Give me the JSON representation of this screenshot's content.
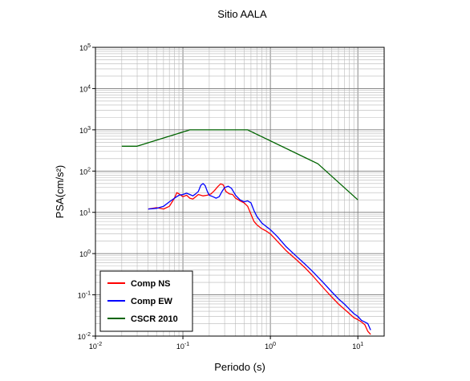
{
  "chart_data": {
    "type": "line",
    "title": "Sitio AALA",
    "xlabel": "Periodo (s)",
    "ylabel": "PSA(cm/s²)",
    "x_scale": "log",
    "y_scale": "log",
    "xlim": [
      0.01,
      20
    ],
    "ylim": [
      0.01,
      100000
    ],
    "grid": true,
    "legend_position": "bottom-left",
    "x_ticks": [
      {
        "value": 0.01,
        "base": "10",
        "exp": "-2"
      },
      {
        "value": 0.1,
        "base": "10",
        "exp": "-1"
      },
      {
        "value": 1,
        "base": "10",
        "exp": "0"
      },
      {
        "value": 10,
        "base": "10",
        "exp": "1"
      }
    ],
    "y_ticks": [
      {
        "value": 0.01,
        "base": "10",
        "exp": "-2"
      },
      {
        "value": 0.1,
        "base": "10",
        "exp": "-1"
      },
      {
        "value": 1,
        "base": "10",
        "exp": "0"
      },
      {
        "value": 10,
        "base": "10",
        "exp": "1"
      },
      {
        "value": 100,
        "base": "10",
        "exp": "2"
      },
      {
        "value": 1000,
        "base": "10",
        "exp": "3"
      },
      {
        "value": 10000,
        "base": "10",
        "exp": "4"
      },
      {
        "value": 100000,
        "base": "10",
        "exp": "5"
      }
    ],
    "series": [
      {
        "name": "Comp NS",
        "color": "#ff0000",
        "x": [
          0.04,
          0.05,
          0.06,
          0.07,
          0.08,
          0.085,
          0.09,
          0.1,
          0.11,
          0.12,
          0.13,
          0.14,
          0.15,
          0.17,
          0.19,
          0.21,
          0.23,
          0.25,
          0.27,
          0.29,
          0.31,
          0.34,
          0.37,
          0.4,
          0.45,
          0.5,
          0.55,
          0.6,
          0.65,
          0.7,
          0.8,
          0.9,
          1.0,
          1.2,
          1.5,
          2.0,
          2.5,
          3.0,
          4.0,
          5.0,
          6.0,
          7.0,
          8.0,
          9.0,
          10.0,
          11.0,
          12.0,
          13.0,
          14.0
        ],
        "y": [
          12,
          13,
          12,
          14,
          22,
          30,
          28,
          24,
          26,
          22,
          21,
          24,
          27,
          25,
          26,
          28,
          34,
          42,
          49,
          46,
          32,
          28,
          27,
          22,
          19,
          17,
          14,
          9,
          6,
          5,
          4,
          3.5,
          3.0,
          2.0,
          1.2,
          0.7,
          0.45,
          0.3,
          0.15,
          0.09,
          0.06,
          0.045,
          0.035,
          0.028,
          0.025,
          0.022,
          0.019,
          0.013,
          0.011
        ]
      },
      {
        "name": "Comp EW",
        "color": "#0000ff",
        "x": [
          0.04,
          0.05,
          0.06,
          0.07,
          0.08,
          0.09,
          0.1,
          0.11,
          0.12,
          0.13,
          0.14,
          0.15,
          0.16,
          0.17,
          0.18,
          0.19,
          0.2,
          0.22,
          0.24,
          0.26,
          0.28,
          0.3,
          0.33,
          0.36,
          0.4,
          0.45,
          0.5,
          0.55,
          0.6,
          0.65,
          0.7,
          0.8,
          0.9,
          1.0,
          1.2,
          1.5,
          2.0,
          2.5,
          3.0,
          4.0,
          5.0,
          6.0,
          7.0,
          8.0,
          9.0,
          10.0,
          11.0,
          12.0,
          13.0,
          14.0
        ],
        "y": [
          12,
          12.5,
          14,
          18,
          22,
          26,
          27,
          29,
          27,
          25,
          28,
          32,
          45,
          50,
          44,
          32,
          26,
          24,
          22,
          24,
          32,
          40,
          43,
          38,
          26,
          20,
          18,
          19,
          17,
          11,
          8,
          5.5,
          4.5,
          3.8,
          2.6,
          1.5,
          0.85,
          0.55,
          0.38,
          0.2,
          0.12,
          0.08,
          0.06,
          0.045,
          0.035,
          0.03,
          0.024,
          0.022,
          0.02,
          0.014
        ]
      },
      {
        "name": "CSCR 2010",
        "color": "#006400",
        "x": [
          0.02,
          0.03,
          0.12,
          0.55,
          3.5,
          10.0
        ],
        "y": [
          400,
          400,
          1000,
          1000,
          150,
          20
        ]
      }
    ]
  }
}
